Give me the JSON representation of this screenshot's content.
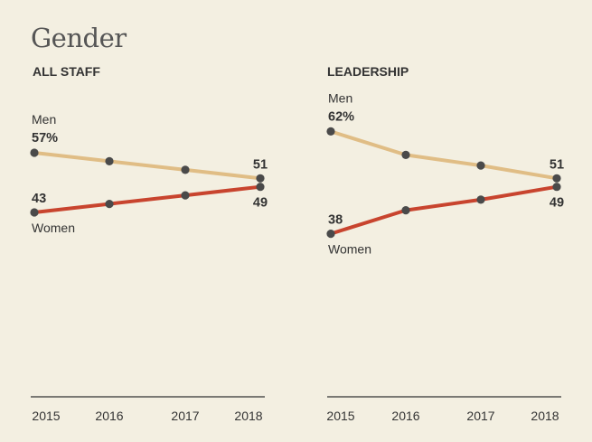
{
  "title": "Gender",
  "colors": {
    "background": "#f3efe1",
    "men": "#e0bd85",
    "women": "#c8442e",
    "marker": "#4a4a4a",
    "axis": "#333333"
  },
  "chart_data": [
    {
      "type": "line",
      "title": "ALL STAFF",
      "x": [
        "2015",
        "2016",
        "2017",
        "2018"
      ],
      "ylim": [
        35,
        65
      ],
      "xlabel": "",
      "ylabel": "",
      "grid": false,
      "series": [
        {
          "name": "Men",
          "values": [
            57,
            55,
            53,
            51
          ],
          "start_label": "57%",
          "end_label": "51"
        },
        {
          "name": "Women",
          "values": [
            43,
            45,
            47,
            49
          ],
          "start_label": "43",
          "end_label": "49"
        }
      ]
    },
    {
      "type": "line",
      "title": "LEADERSHIP",
      "x": [
        "2015",
        "2016",
        "2017",
        "2018"
      ],
      "ylim": [
        35,
        65
      ],
      "xlabel": "",
      "ylabel": "",
      "grid": false,
      "series": [
        {
          "name": "Men",
          "values": [
            62,
            56.5,
            54,
            51
          ],
          "start_label": "62%",
          "end_label": "51"
        },
        {
          "name": "Women",
          "values": [
            38,
            43.5,
            46,
            49
          ],
          "start_label": "38",
          "end_label": "49"
        }
      ]
    }
  ]
}
